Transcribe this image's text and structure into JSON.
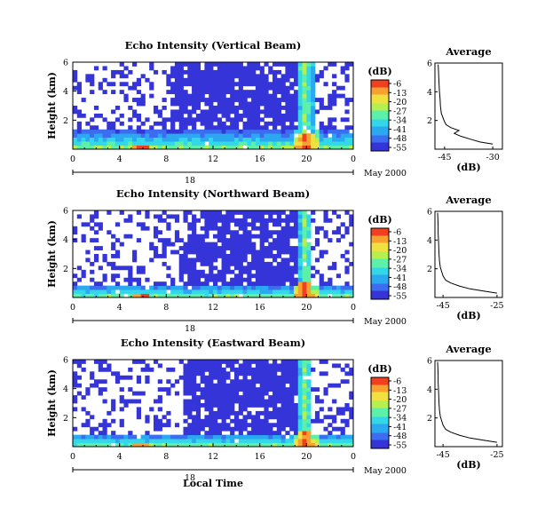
{
  "chart_data": {
    "type": "heatmap",
    "figure_xlabel": "Local Time",
    "panels": [
      {
        "title": "Echo Intensity (Vertical Beam)",
        "ylabel": "Height (km)",
        "x_ticks": [
          "0",
          "4",
          "8",
          "12",
          "16",
          "20",
          "0"
        ],
        "y_ticks": [
          "6",
          "4",
          "2"
        ],
        "xlim": [
          0,
          24
        ],
        "ylim": [
          0,
          6
        ],
        "date_day_label": "18",
        "date_month_label": "May 2000",
        "colorbar": {
          "unit_label": "(dB)",
          "ticks": [
            "-6",
            "-13",
            "-20",
            "-27",
            "-34",
            "-41",
            "-48",
            "-55"
          ],
          "range": [
            -55,
            -6
          ]
        },
        "intensity_pattern": {
          "near_surface_layer_top_km": 1.3,
          "strong_plume_hours": [
            19.2,
            20.6
          ],
          "dense_echo_hours": [
            8.5,
            19.5
          ],
          "background_db": -55
        },
        "profile": {
          "title": "Average",
          "xlabel": "(dB)",
          "x_ticks": [
            "-45",
            "-30"
          ],
          "y_ticks": [
            "6",
            "4",
            "2"
          ],
          "xlim": [
            -48,
            -27
          ],
          "heights": [
            0.35,
            0.5,
            0.7,
            0.9,
            1.1,
            1.3,
            1.5,
            1.7,
            1.9,
            2.2,
            2.5,
            3.0,
            3.5,
            4.0,
            4.5,
            5.0,
            5.5,
            5.9
          ],
          "values": [
            -30,
            -34,
            -37,
            -40,
            -42,
            -40.5,
            -43,
            -44.5,
            -45,
            -45.5,
            -46,
            -46.3,
            -46.4,
            -46.6,
            -46.7,
            -46.8,
            -46.9,
            -47
          ]
        }
      },
      {
        "title": "Echo Intensity (Northward Beam)",
        "ylabel": "Height (km)",
        "x_ticks": [
          "0",
          "4",
          "8",
          "12",
          "16",
          "20",
          "0"
        ],
        "y_ticks": [
          "6",
          "4",
          "2"
        ],
        "xlim": [
          0,
          24
        ],
        "ylim": [
          0,
          6
        ],
        "date_day_label": "18",
        "date_month_label": "May 2000",
        "colorbar": {
          "unit_label": "(dB)",
          "ticks": [
            "-6",
            "-13",
            "-20",
            "-27",
            "-34",
            "-41",
            "-48",
            "-55"
          ],
          "range": [
            -55,
            -6
          ]
        },
        "intensity_pattern": {
          "near_surface_layer_top_km": 0.9,
          "strong_plume_hours": [
            19.3,
            20.5
          ],
          "dense_echo_hours": [
            9.5,
            19.5
          ],
          "background_db": -55
        },
        "profile": {
          "title": "Average",
          "xlabel": "(dB)",
          "x_ticks": [
            "-45",
            "-25"
          ],
          "y_ticks": [
            "6",
            "4",
            "2"
          ],
          "xlim": [
            -48,
            -23
          ],
          "heights": [
            0.3,
            0.45,
            0.6,
            0.8,
            1.0,
            1.2,
            1.5,
            1.8,
            2.1,
            2.5,
            3.0,
            3.5,
            4.0,
            4.5,
            5.0,
            5.5,
            5.9
          ],
          "values": [
            -25,
            -30,
            -35,
            -39,
            -42,
            -44,
            -45,
            -45.5,
            -46,
            -46.3,
            -46.5,
            -46.6,
            -46.7,
            -46.8,
            -46.8,
            -46.9,
            -47
          ]
        }
      },
      {
        "title": "Echo Intensity (Eastward Beam)",
        "ylabel": "Height (km)",
        "x_ticks": [
          "0",
          "4",
          "8",
          "12",
          "16",
          "20",
          "0"
        ],
        "y_ticks": [
          "6",
          "4",
          "2"
        ],
        "xlim": [
          0,
          24
        ],
        "ylim": [
          0,
          6
        ],
        "date_day_label": "18",
        "date_month_label": "May 2000",
        "colorbar": {
          "unit_label": "(dB)",
          "ticks": [
            "-6",
            "-13",
            "-20",
            "-27",
            "-34",
            "-41",
            "-48",
            "-55"
          ],
          "range": [
            -55,
            -6
          ]
        },
        "intensity_pattern": {
          "near_surface_layer_top_km": 0.9,
          "strong_plume_hours": [
            19.3,
            20.5
          ],
          "dense_echo_hours": [
            9.5,
            19.5
          ],
          "background_db": -55
        },
        "profile": {
          "title": "Average",
          "xlabel": "(dB)",
          "x_ticks": [
            "-45",
            "-25"
          ],
          "y_ticks": [
            "6",
            "4",
            "2"
          ],
          "xlim": [
            -48,
            -23
          ],
          "heights": [
            0.3,
            0.45,
            0.6,
            0.8,
            1.0,
            1.2,
            1.5,
            1.8,
            2.1,
            2.5,
            3.0,
            3.5,
            4.0,
            4.5,
            5.0,
            5.5,
            5.9
          ],
          "values": [
            -25,
            -30,
            -35,
            -39,
            -42,
            -44,
            -45,
            -45.5,
            -46,
            -46.3,
            -46.5,
            -46.6,
            -46.7,
            -46.8,
            -46.8,
            -46.9,
            -47
          ]
        }
      }
    ],
    "colormap": [
      "#3434d8",
      "#3c6cf0",
      "#2aa8f0",
      "#33d8e8",
      "#5cf0a8",
      "#b4f050",
      "#f0e040",
      "#f8a030",
      "#f04020"
    ]
  }
}
